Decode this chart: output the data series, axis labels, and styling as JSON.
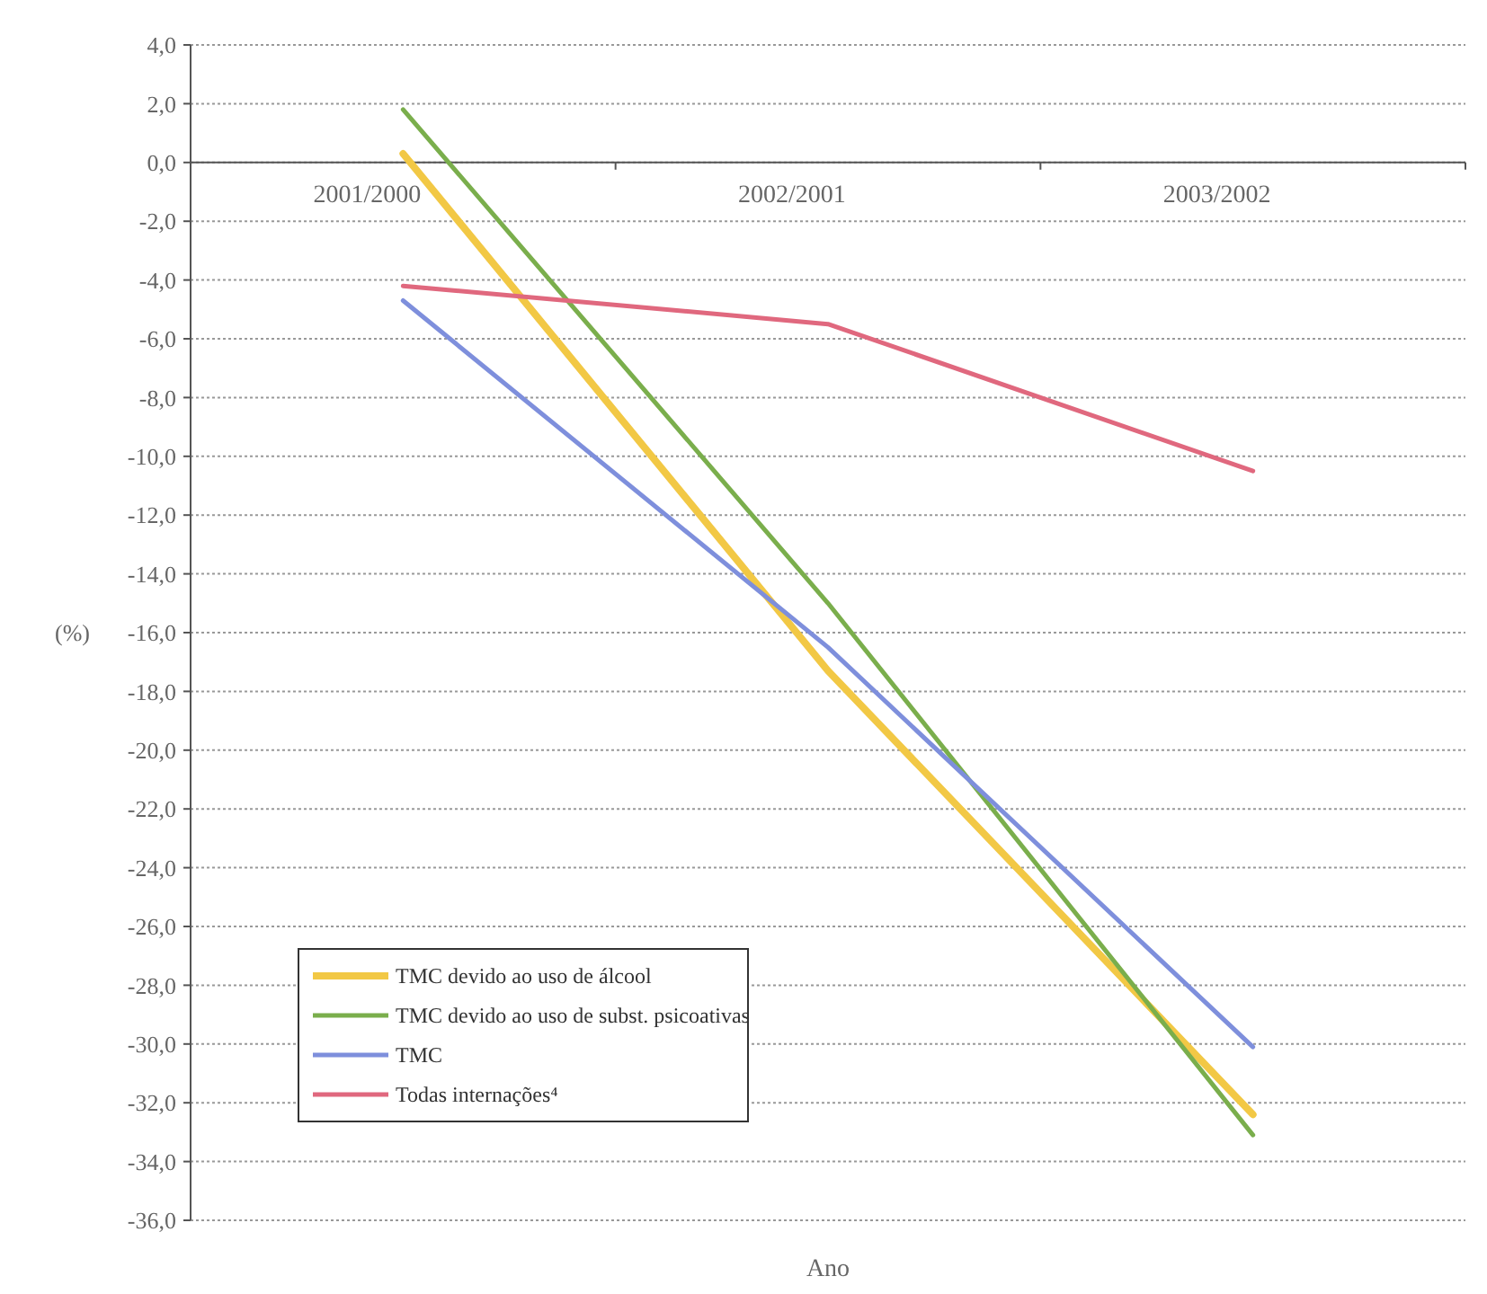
{
  "chart_data": {
    "type": "line",
    "xlabel": "Ano",
    "ylabel": "(%)",
    "categories": [
      "2001/2000",
      "2002/2001",
      "2003/2002"
    ],
    "series": [
      {
        "name": "TMC devido ao uso de álcool",
        "color": "#f2c845",
        "values": [
          0.3,
          -17.3,
          -32.4
        ]
      },
      {
        "name": "TMC devido ao uso de subst. psicoativas",
        "color": "#7aae4c",
        "values": [
          1.8,
          -15.0,
          -33.1
        ]
      },
      {
        "name": "TMC",
        "color": "#7e8fdc",
        "values": [
          -4.7,
          -16.5,
          -30.1
        ]
      },
      {
        "name": "Todas internações⁴",
        "color": "#e0687e",
        "values": [
          -4.2,
          -5.5,
          -10.5
        ]
      }
    ],
    "ylim": [
      -36,
      4
    ],
    "yticks": [
      {
        "value": 4,
        "label": "4,0"
      },
      {
        "value": 2,
        "label": "2,0"
      },
      {
        "value": 0,
        "label": "0,0"
      },
      {
        "value": -2,
        "label": "-2,0"
      },
      {
        "value": -4,
        "label": "-4,0"
      },
      {
        "value": -6,
        "label": "-6,0"
      },
      {
        "value": -8,
        "label": "-8,0"
      },
      {
        "value": -10,
        "label": "-10,0"
      },
      {
        "value": -12,
        "label": "-12,0"
      },
      {
        "value": -14,
        "label": "-14,0"
      },
      {
        "value": -16,
        "label": "-16,0"
      },
      {
        "value": -18,
        "label": "-18,0"
      },
      {
        "value": -20,
        "label": "-20,0"
      },
      {
        "value": -22,
        "label": "-22,0"
      },
      {
        "value": -24,
        "label": "-24,0"
      },
      {
        "value": -26,
        "label": "-26,0"
      },
      {
        "value": -28,
        "label": "-28,0"
      },
      {
        "value": -30,
        "label": "-30,0"
      },
      {
        "value": -32,
        "label": "-32,0"
      },
      {
        "value": -34,
        "label": "-34,0"
      },
      {
        "value": -36,
        "label": "-36,0"
      }
    ],
    "grid": "y",
    "legend": "bottom left",
    "marker": "none",
    "line_style": "solid"
  }
}
